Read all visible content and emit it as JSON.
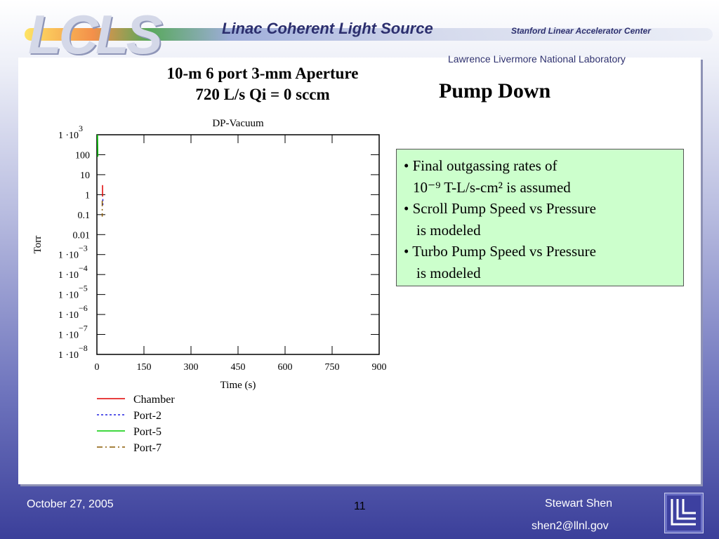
{
  "header": {
    "logo_text": "LCLS",
    "title": "Linac Coherent Light Source",
    "org1": "Stanford Linear Accelerator Center",
    "org2": "Lawrence Livermore National Laboratory"
  },
  "slide": {
    "heading_line1": "10-m  6 port 3-mm Aperture",
    "heading_line2": "720 L/s Qi = 0 sccm",
    "title": "Pump Down",
    "notes": [
      "• Final outgassing rates of",
      "10⁻⁹ T-L/s-cm² is assumed",
      "• Scroll Pump Speed vs Pressure",
      "is modeled",
      "• Turbo Pump Speed vs Pressure",
      "is modeled"
    ]
  },
  "chart_data": {
    "type": "line",
    "title": "DP-Vacuum",
    "xlabel": "Time (s)",
    "ylabel": "Torr",
    "xlim": [
      0,
      900
    ],
    "ylim": [
      1e-08,
      1000
    ],
    "yscale": "log",
    "xticks": [
      "0",
      "150",
      "300",
      "450",
      "600",
      "750",
      "900"
    ],
    "yticks": [
      {
        "mant": "1 ·10",
        "exp": "3"
      },
      {
        "mant": "100",
        "exp": ""
      },
      {
        "mant": "10",
        "exp": ""
      },
      {
        "mant": "1",
        "exp": ""
      },
      {
        "mant": "0.1",
        "exp": ""
      },
      {
        "mant": "0.01",
        "exp": ""
      },
      {
        "mant": "1 ·10",
        "exp": "−3"
      },
      {
        "mant": "1 ·10",
        "exp": "−4"
      },
      {
        "mant": "1 ·10",
        "exp": "−5"
      },
      {
        "mant": "1 ·10",
        "exp": "−6"
      },
      {
        "mant": "1 ·10",
        "exp": "−7"
      },
      {
        "mant": "1 ·10",
        "exp": "−8"
      }
    ],
    "series": [
      {
        "name": "Chamber",
        "color": "#e00000",
        "dash": "",
        "x": [
          18,
          18
        ],
        "y": [
          3,
          0.8
        ]
      },
      {
        "name": "Port-2",
        "color": "#2020e0",
        "dash": "3,3",
        "x": [
          19,
          19
        ],
        "y": [
          0.6,
          0.3
        ]
      },
      {
        "name": "Port-5",
        "color": "#00cc00",
        "dash": "",
        "x": [
          2,
          3
        ],
        "y": [
          1000,
          80
        ]
      },
      {
        "name": "Port-7",
        "color": "#8a5a00",
        "dash": "8,4,2,4",
        "x": [
          17,
          17
        ],
        "y": [
          0.5,
          0.08
        ]
      }
    ]
  },
  "footer": {
    "date": "October 27,  2005",
    "page": "11",
    "author": "Stewart Shen",
    "email": "shen2@llnl.gov"
  }
}
